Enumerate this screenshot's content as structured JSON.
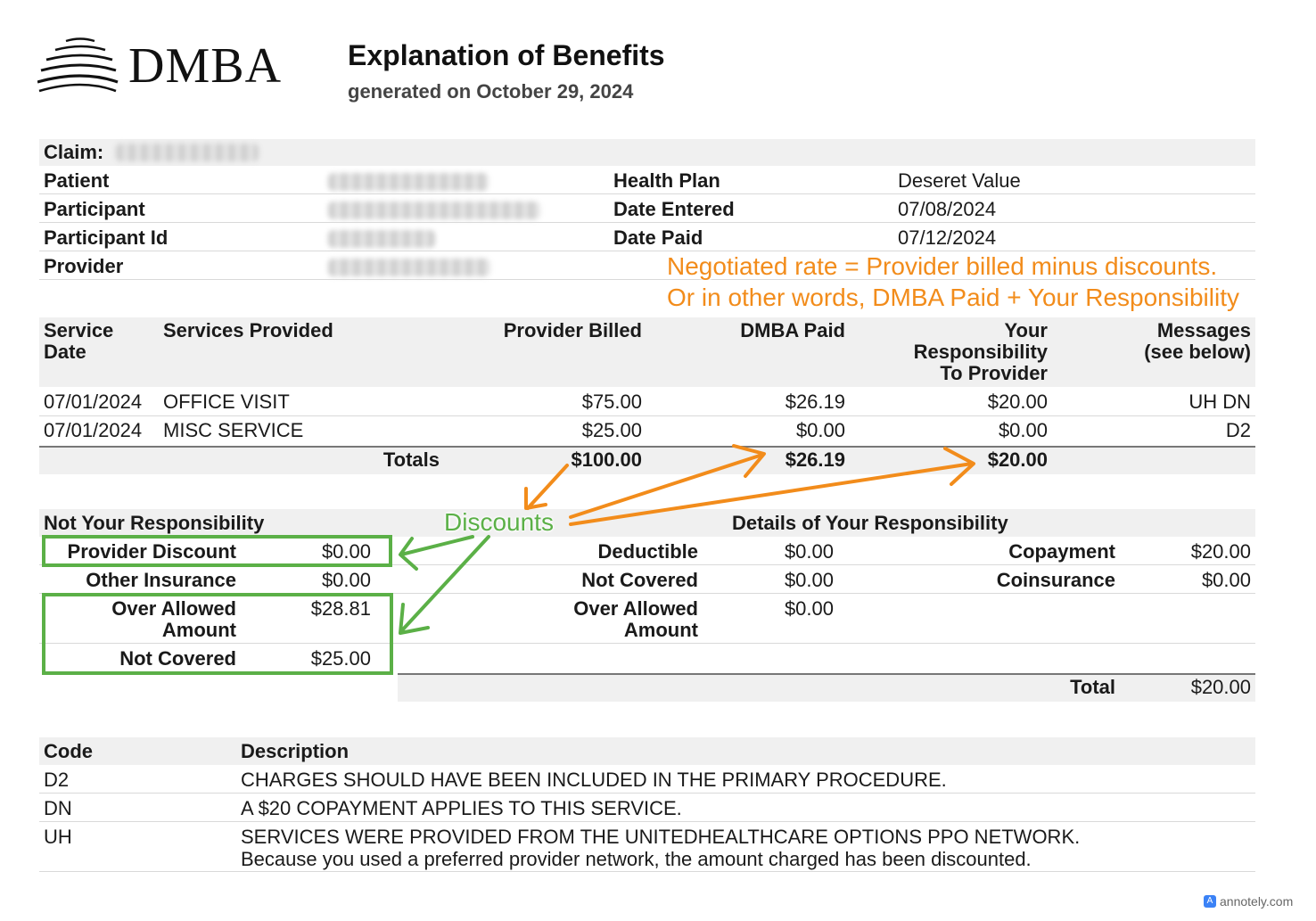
{
  "header": {
    "logo_text": "DMBA",
    "title": "Explanation of Benefits",
    "subtitle": "generated on October 29, 2024"
  },
  "claim": {
    "claim_label": "Claim:",
    "patient_label": "Patient",
    "participant_label": "Participant",
    "participant_id_label": "Participant Id",
    "provider_label": "Provider",
    "health_plan_label": "Health Plan",
    "health_plan_value": "Deseret Value",
    "date_entered_label": "Date Entered",
    "date_entered_value": "07/08/2024",
    "date_paid_label": "Date Paid",
    "date_paid_value": "07/12/2024"
  },
  "services": {
    "headers": {
      "service_date": [
        "Service",
        "Date"
      ],
      "services_provided": "Services Provided",
      "provider_billed": "Provider Billed",
      "dmba_paid": "DMBA Paid",
      "your_responsibility": [
        "Your",
        "Responsibility",
        "To Provider"
      ],
      "messages": [
        "Messages",
        "(see below)"
      ]
    },
    "rows": [
      {
        "date": "07/01/2024",
        "service": "OFFICE VISIT",
        "billed": "$75.00",
        "paid": "$26.19",
        "resp": "$20.00",
        "msg": "UH DN"
      },
      {
        "date": "07/01/2024",
        "service": "MISC SERVICE",
        "billed": "$25.00",
        "paid": "$0.00",
        "resp": "$0.00",
        "msg": "D2"
      }
    ],
    "totals": {
      "label": "Totals",
      "billed": "$100.00",
      "paid": "$26.19",
      "resp": "$20.00"
    }
  },
  "not_responsibility": {
    "heading": "Not Your Responsibility",
    "provider_discount_label": "Provider Discount",
    "provider_discount_value": "$0.00",
    "other_insurance_label": "Other Insurance",
    "other_insurance_value": "$0.00",
    "over_allowed_label": [
      "Over Allowed",
      "Amount"
    ],
    "over_allowed_value": "$28.81",
    "not_covered_label": "Not Covered",
    "not_covered_value": "$25.00"
  },
  "your_details": {
    "heading": "Details of Your Responsibility",
    "deductible_label": "Deductible",
    "deductible_value": "$0.00",
    "not_covered_label": "Not Covered",
    "not_covered_value": "$0.00",
    "over_allowed_label": [
      "Over Allowed",
      "Amount"
    ],
    "over_allowed_value": "$0.00",
    "copayment_label": "Copayment",
    "copayment_value": "$20.00",
    "coinsurance_label": "Coinsurance",
    "coinsurance_value": "$0.00",
    "total_label": "Total",
    "total_value": "$20.00"
  },
  "codes": {
    "code_header": "Code",
    "description_header": "Description",
    "rows": [
      {
        "code": "D2",
        "description": "CHARGES SHOULD HAVE BEEN INCLUDED IN THE PRIMARY PROCEDURE.",
        "extra": ""
      },
      {
        "code": "DN",
        "description": "A $20 COPAYMENT APPLIES TO THIS SERVICE.",
        "extra": ""
      },
      {
        "code": "UH",
        "description": "SERVICES WERE PROVIDED FROM THE UNITEDHEALTHCARE OPTIONS PPO NETWORK.",
        "extra": "Because you used a preferred provider network, the amount charged has been discounted."
      }
    ]
  },
  "annotations": {
    "negotiated_line1": "Negotiated rate = Provider billed minus discounts.",
    "negotiated_line2": "Or in other words, DMBA Paid + Your Responsibility",
    "discounts_label": "Discounts",
    "orange_color": "#f28c1b",
    "green_color": "#5bb047"
  },
  "watermark": {
    "text": "annotely.com"
  }
}
